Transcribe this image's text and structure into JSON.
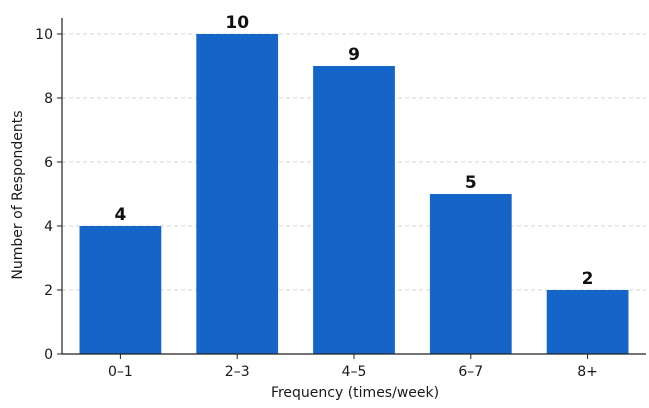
{
  "chart_data": {
    "type": "bar",
    "title": "",
    "xlabel": "Frequency (times/week)",
    "ylabel": "Number of Respondents",
    "categories": [
      "0–1",
      "2–3",
      "4–5",
      "6–7",
      "8+"
    ],
    "values": [
      4,
      10,
      9,
      5,
      2
    ],
    "data_labels": [
      "4",
      "10",
      "9",
      "5",
      "2"
    ],
    "ylim": [
      0,
      10.5
    ],
    "yticks": [
      0,
      2,
      4,
      6,
      8,
      10
    ],
    "grid": "horizontal dashed",
    "legend": "none",
    "bar_color": "#1565c8"
  }
}
